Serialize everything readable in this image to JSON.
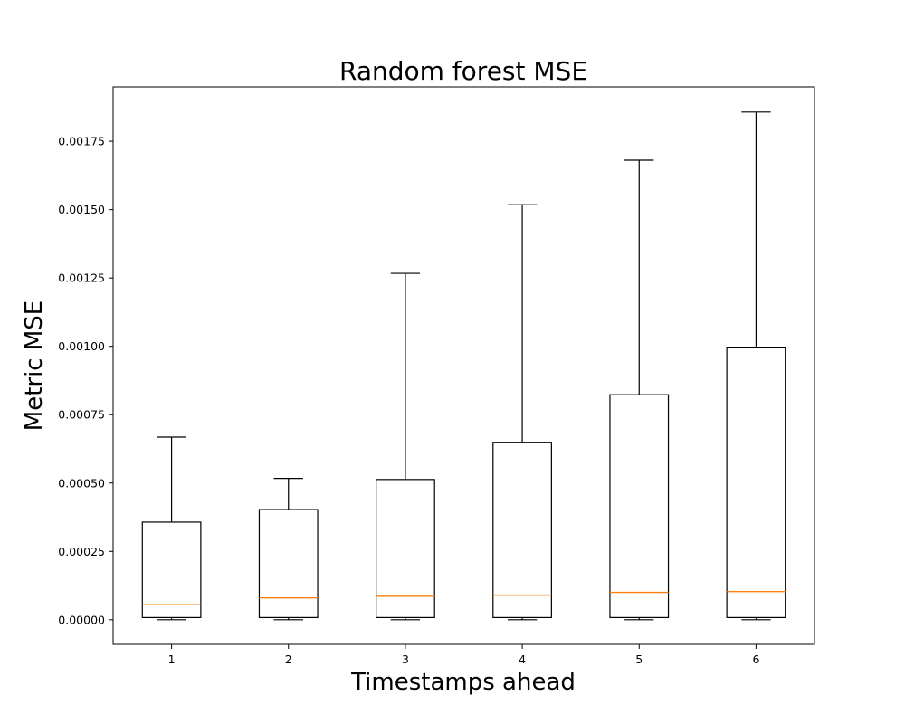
{
  "chart_data": {
    "type": "box",
    "title": "Random forest MSE",
    "xlabel": "Timestamps ahead",
    "ylabel": "Metric MSE",
    "categories": [
      "1",
      "2",
      "3",
      "4",
      "5",
      "6"
    ],
    "boxes": [
      {
        "label": "1",
        "whisker_low": 0.0,
        "q1": 8e-06,
        "median": 5.5e-05,
        "q3": 0.000357,
        "whisker_high": 0.000668
      },
      {
        "label": "2",
        "whisker_low": 0.0,
        "q1": 8e-06,
        "median": 8e-05,
        "q3": 0.000403,
        "whisker_high": 0.000517
      },
      {
        "label": "3",
        "whisker_low": 0.0,
        "q1": 8e-06,
        "median": 8.6e-05,
        "q3": 0.000513,
        "whisker_high": 0.001267
      },
      {
        "label": "4",
        "whisker_low": 0.0,
        "q1": 8e-06,
        "median": 9e-05,
        "q3": 0.000649,
        "whisker_high": 0.001518
      },
      {
        "label": "5",
        "whisker_low": 0.0,
        "q1": 8e-06,
        "median": 0.0001,
        "q3": 0.000823,
        "whisker_high": 0.001681
      },
      {
        "label": "6",
        "whisker_low": 0.0,
        "q1": 8e-06,
        "median": 0.000103,
        "q3": 0.000997,
        "whisker_high": 0.001857
      }
    ],
    "yticks": [
      0.0,
      0.00025,
      0.0005,
      0.00075,
      0.001,
      0.00125,
      0.0015,
      0.00175
    ],
    "ytick_labels": [
      "0.00000",
      "0.00025",
      "0.00050",
      "0.00075",
      "0.00100",
      "0.00125",
      "0.00150",
      "0.00175"
    ],
    "ylim": [
      -9e-05,
      0.001949
    ],
    "xlim": [
      0.5,
      6.5
    ],
    "grid": false,
    "colors": {
      "box_edge": "#000000",
      "median": "#ff7f0e",
      "axes": "#000000"
    }
  }
}
